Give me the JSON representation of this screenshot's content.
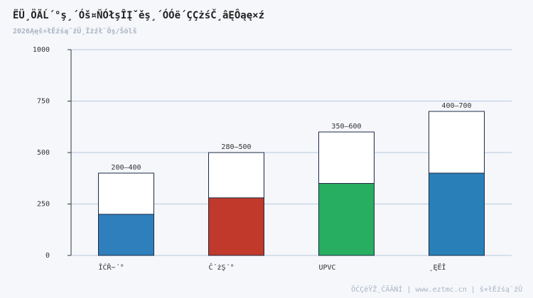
{
  "chart_data": {
    "type": "range-bar",
    "title": "ËÜ¸ÖÄĹ´°ş¸´Óš¤ŇÓłşÎĮˇěş¸´ÓÓë´ÇÇżśČ¸âĘÔąę×ź",
    "subtitle": "2026Ąęš¤łĚźśą¨źŰ¸Îżźł¨Öş/Šölš",
    "footer": "ÖĆÇëŸŽ¸ĈÄÄŃÍ | www.eztmc.cn | š×łĚźśą¨źŰ",
    "categories": [
      "ÎĆŘ−´°",
      "Č´żŞ´°",
      "UPVC",
      "¸ĘËÎ"
    ],
    "values_low": [
      200,
      280,
      350,
      400
    ],
    "values_high": [
      400,
      500,
      600,
      700
    ],
    "value_labels": [
      "200–400",
      "280–500",
      "350–600",
      "400–700"
    ],
    "colors": [
      "#2e7fbb",
      "#c0392b",
      "#27ae60",
      "#2980b9"
    ],
    "ylim": [
      0,
      1000
    ],
    "yticks": [
      0,
      250,
      500,
      750,
      1000
    ],
    "grid": true
  }
}
